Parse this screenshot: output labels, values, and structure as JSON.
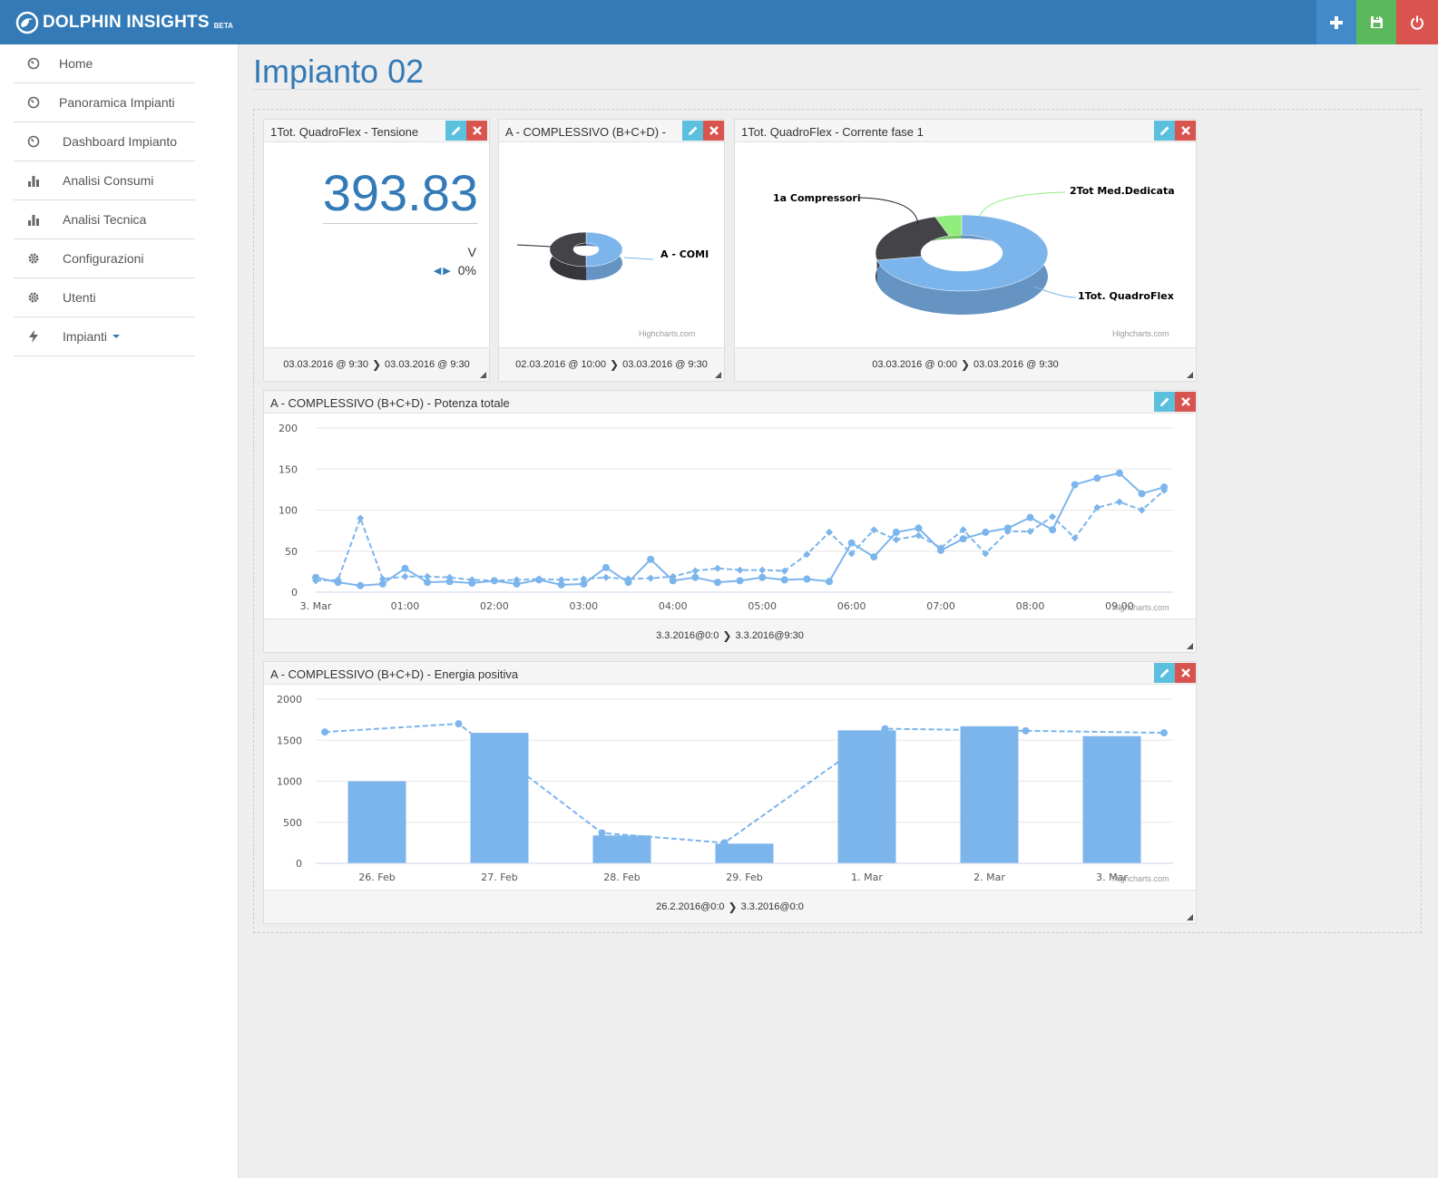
{
  "app": {
    "brand": "DOLPHIN INSIGHTS",
    "beta": "BETA"
  },
  "topbar": {
    "icons": [
      "plus-icon",
      "save-icon",
      "power-icon"
    ]
  },
  "sidebar": {
    "items": [
      {
        "label": "Home",
        "icon": "dashboard-icon"
      },
      {
        "label": "Panoramica Impianti",
        "icon": "dashboard-icon"
      },
      {
        "label": "Dashboard Impianto",
        "icon": "dashboard-icon"
      },
      {
        "label": "Analisi Consumi",
        "icon": "bar-chart-icon"
      },
      {
        "label": "Analisi Tecnica",
        "icon": "bar-chart-icon"
      },
      {
        "label": "Configurazioni",
        "icon": "gear-icon"
      },
      {
        "label": "Utenti",
        "icon": "gear-icon"
      },
      {
        "label": "Impianti",
        "icon": "bolt-icon"
      }
    ]
  },
  "page": {
    "title": "Impianto 02"
  },
  "credits": "Highcharts.com",
  "widgets": {
    "tensione": {
      "title": "1Tot. QuadroFlex - Tensione",
      "value": "393.83",
      "unit": "V",
      "delta": "0%",
      "from": "03.03.2016 @ 9:30",
      "to": "03.03.2016 @ 9:30"
    },
    "complessivo_pie": {
      "title": "A - COMPLESSIVO (B+C+D) -",
      "from": "02.03.2016 @ 10:00",
      "to": "03.03.2016 @ 9:30"
    },
    "corrente": {
      "title": "1Tot. QuadroFlex - Corrente fase 1",
      "from": "03.03.2016 @ 0:00",
      "to": "03.03.2016 @ 9:30"
    },
    "potenza": {
      "title": "A - COMPLESSIVO (B+C+D) - Potenza totale",
      "from": "3.3.2016@0:0",
      "to": "3.3.2016@9:30"
    },
    "energia": {
      "title": "A - COMPLESSIVO (B+C+D) - Energia positiva",
      "from": "26.2.2016@0:0",
      "to": "3.3.2016@0:0"
    }
  },
  "colors": {
    "blue": "#7cb5ec",
    "dark": "#434348",
    "green": "#90ed7d",
    "brand": "#337ab7"
  },
  "chart_data": [
    {
      "type": "pie",
      "id": "pie-complessivo",
      "slices": [
        {
          "name": "A - COMI",
          "value": 50,
          "color": "#7cb5ec"
        },
        {
          "name": "",
          "value": 50,
          "color": "#434348"
        }
      ]
    },
    {
      "type": "pie",
      "id": "pie-corrente",
      "slices": [
        {
          "name": "1Tot. QuadroFlex",
          "value": 72,
          "color": "#7cb5ec"
        },
        {
          "name": "1a Compressori",
          "value": 23,
          "color": "#434348"
        },
        {
          "name": "2Tot Med.Dedicata",
          "value": 5,
          "color": "#90ed7d"
        }
      ]
    },
    {
      "type": "line",
      "id": "line-potenza",
      "x_tick_labels": [
        "3. Mar",
        "01:00",
        "02:00",
        "03:00",
        "04:00",
        "05:00",
        "06:00",
        "07:00",
        "08:00",
        "09:00"
      ],
      "ylim": [
        0,
        200
      ],
      "y_ticks": [
        0,
        50,
        100,
        150,
        200
      ],
      "x": [
        0,
        0.25,
        0.5,
        0.75,
        1,
        1.25,
        1.5,
        1.75,
        2,
        2.25,
        2.5,
        2.75,
        3,
        3.25,
        3.5,
        3.75,
        4,
        4.25,
        4.5,
        4.75,
        5,
        5.25,
        5.5,
        5.75,
        6,
        6.25,
        6.5,
        6.75,
        7,
        7.25,
        7.5,
        7.75,
        8,
        8.25,
        8.5,
        8.75,
        9,
        9.25,
        9.5
      ],
      "series": [
        {
          "style": "solid",
          "values": [
            18,
            12,
            8,
            10,
            29,
            12,
            13,
            11,
            14,
            10,
            15,
            9,
            10,
            30,
            12,
            40,
            14,
            18,
            12,
            14,
            18,
            15,
            16,
            13,
            60,
            43,
            73,
            78,
            51,
            65,
            73,
            78,
            91,
            76,
            131,
            139,
            145,
            120,
            128
          ]
        },
        {
          "style": "dashed",
          "values": [
            14,
            15,
            90,
            16,
            19,
            19,
            18,
            15,
            14,
            15,
            16,
            15,
            16,
            18,
            16,
            17,
            19,
            26,
            29,
            27,
            27,
            26,
            46,
            73,
            47,
            76,
            64,
            69,
            54,
            76,
            47,
            74,
            74,
            92,
            66,
            103,
            110,
            100,
            124
          ]
        }
      ]
    },
    {
      "type": "bar",
      "id": "bar-energia",
      "categories": [
        "26. Feb",
        "27. Feb",
        "28. Feb",
        "29. Feb",
        "1. Mar",
        "2. Mar",
        "3. Mar"
      ],
      "ylim": [
        0,
        2000
      ],
      "y_ticks": [
        0,
        500,
        1000,
        1500,
        2000
      ],
      "series": [
        {
          "type": "column",
          "values": [
            1000,
            1590,
            340,
            240,
            1620,
            1670,
            1550
          ]
        },
        {
          "type": "dashed-line",
          "values": [
            1600,
            1700,
            370,
            250,
            1640,
            1615,
            1590
          ]
        }
      ]
    }
  ]
}
